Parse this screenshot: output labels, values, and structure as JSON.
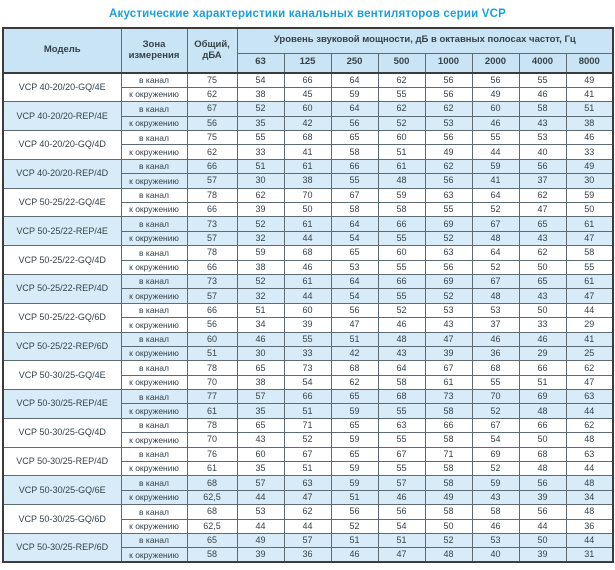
{
  "title": "Акустические характеристики канальных вентиляторов  серии VCP",
  "colors": {
    "title_blue": "#1d9fd8",
    "header_bg": "#c9e5f5",
    "row_highlight": "#d7ecf8",
    "border_dark": "#3c3c3c",
    "border_light": "#5f6b73",
    "text": "#37424a"
  },
  "table": {
    "headers": {
      "model": "Модель",
      "zone": "Зона измерения",
      "total": "Общий, дБА",
      "levels": "Уровень звуковой мощности, дБ в октавных полосах частот, Гц"
    },
    "frequencies": [
      "63",
      "125",
      "250",
      "500",
      "1000",
      "2000",
      "4000",
      "8000"
    ],
    "zone_labels": {
      "duct": "в канал",
      "ambient": "к окружению"
    },
    "rows": [
      {
        "model": "VCP 40-20/20-GQ/4E",
        "highlight": false,
        "duct": {
          "total": "75",
          "levels": [
            54,
            66,
            64,
            62,
            56,
            56,
            55,
            49
          ]
        },
        "ambient": {
          "total": "62",
          "levels": [
            38,
            45,
            59,
            55,
            56,
            49,
            46,
            41
          ]
        }
      },
      {
        "model": "VCP 40-20/20-REP/4E",
        "highlight": true,
        "duct": {
          "total": "67",
          "levels": [
            52,
            60,
            64,
            62,
            62,
            60,
            58,
            51
          ]
        },
        "ambient": {
          "total": "56",
          "levels": [
            35,
            42,
            56,
            52,
            53,
            46,
            43,
            38
          ]
        }
      },
      {
        "model": "VCP 40-20/20-GQ/4D",
        "highlight": false,
        "duct": {
          "total": "75",
          "levels": [
            55,
            68,
            65,
            60,
            56,
            55,
            53,
            46
          ]
        },
        "ambient": {
          "total": "62",
          "levels": [
            33,
            41,
            58,
            51,
            49,
            44,
            40,
            33
          ]
        }
      },
      {
        "model": "VCP 40-20/20-REP/4D",
        "highlight": true,
        "duct": {
          "total": "66",
          "levels": [
            51,
            61,
            66,
            61,
            62,
            59,
            56,
            49
          ]
        },
        "ambient": {
          "total": "57",
          "levels": [
            30,
            38,
            55,
            48,
            56,
            41,
            37,
            30
          ]
        }
      },
      {
        "model": "VCP 50-25/22-GQ/4E",
        "highlight": false,
        "duct": {
          "total": "78",
          "levels": [
            62,
            70,
            67,
            59,
            63,
            64,
            62,
            59
          ]
        },
        "ambient": {
          "total": "66",
          "levels": [
            39,
            50,
            58,
            58,
            55,
            52,
            47,
            50
          ]
        }
      },
      {
        "model": "VCP 50-25/22-REP/4E",
        "highlight": true,
        "duct": {
          "total": "73",
          "levels": [
            52,
            61,
            64,
            66,
            69,
            67,
            65,
            61
          ]
        },
        "ambient": {
          "total": "57",
          "levels": [
            32,
            44,
            54,
            55,
            52,
            48,
            43,
            47
          ]
        }
      },
      {
        "model": "VCP 50-25/22-GQ/4D",
        "highlight": false,
        "duct": {
          "total": "78",
          "levels": [
            59,
            68,
            65,
            60,
            63,
            64,
            62,
            58
          ]
        },
        "ambient": {
          "total": "66",
          "levels": [
            38,
            46,
            53,
            55,
            56,
            52,
            50,
            55
          ]
        }
      },
      {
        "model": "VCP 50-25/22-REP/4D",
        "highlight": true,
        "duct": {
          "total": "73",
          "levels": [
            52,
            61,
            64,
            66,
            69,
            67,
            65,
            61
          ]
        },
        "ambient": {
          "total": "57",
          "levels": [
            32,
            44,
            54,
            55,
            52,
            48,
            43,
            47
          ]
        }
      },
      {
        "model": "VCP 50-25/22-GQ/6D",
        "highlight": false,
        "duct": {
          "total": "66",
          "levels": [
            51,
            60,
            56,
            52,
            53,
            53,
            50,
            44
          ]
        },
        "ambient": {
          "total": "56",
          "levels": [
            34,
            39,
            47,
            46,
            43,
            37,
            33,
            29
          ]
        }
      },
      {
        "model": "VCP 50-25/22-REP/6D",
        "highlight": true,
        "duct": {
          "total": "60",
          "levels": [
            46,
            55,
            51,
            48,
            47,
            46,
            46,
            41
          ]
        },
        "ambient": {
          "total": "51",
          "levels": [
            30,
            33,
            42,
            43,
            39,
            36,
            29,
            25
          ]
        }
      },
      {
        "model": "VCP 50-30/25-GQ/4E",
        "highlight": false,
        "duct": {
          "total": "78",
          "levels": [
            65,
            73,
            68,
            64,
            67,
            68,
            66,
            62
          ]
        },
        "ambient": {
          "total": "70",
          "levels": [
            38,
            54,
            62,
            58,
            61,
            55,
            51,
            47
          ]
        }
      },
      {
        "model": "VCP 50-30/25-REP/4E",
        "highlight": true,
        "duct": {
          "total": "77",
          "levels": [
            57,
            66,
            65,
            68,
            73,
            70,
            69,
            63
          ]
        },
        "ambient": {
          "total": "61",
          "levels": [
            35,
            51,
            59,
            55,
            58,
            52,
            48,
            44
          ]
        }
      },
      {
        "model": "VCP 50-30/25-GQ/4D",
        "highlight": false,
        "duct": {
          "total": "78",
          "levels": [
            65,
            71,
            65,
            63,
            66,
            67,
            66,
            62
          ]
        },
        "ambient": {
          "total": "70",
          "levels": [
            43,
            52,
            59,
            55,
            58,
            54,
            50,
            48
          ]
        }
      },
      {
        "model": "VCP 50-30/25-REP/4D",
        "highlight": false,
        "duct": {
          "total": "76",
          "levels": [
            60,
            67,
            65,
            67,
            71,
            69,
            68,
            63
          ]
        },
        "ambient": {
          "total": "61",
          "levels": [
            35,
            51,
            59,
            55,
            58,
            52,
            48,
            44
          ]
        }
      },
      {
        "model": "VCP 50-30/25-GQ/6E",
        "highlight": true,
        "duct": {
          "total": "68",
          "levels": [
            57,
            63,
            59,
            57,
            58,
            59,
            56,
            48
          ]
        },
        "ambient": {
          "total": "62,5",
          "levels": [
            44,
            47,
            51,
            46,
            49,
            43,
            39,
            34
          ]
        }
      },
      {
        "model": "VCP 50-30/25-GQ/6D",
        "highlight": false,
        "duct": {
          "total": "68",
          "levels": [
            53,
            62,
            56,
            56,
            58,
            58,
            56,
            48
          ]
        },
        "ambient": {
          "total": "62,5",
          "levels": [
            44,
            44,
            52,
            54,
            50,
            46,
            44,
            36
          ]
        }
      },
      {
        "model": "VCP 50-30/25-REP/6D",
        "highlight": true,
        "duct": {
          "total": "65",
          "levels": [
            49,
            57,
            51,
            51,
            52,
            53,
            50,
            44
          ]
        },
        "ambient": {
          "total": "58",
          "levels": [
            39,
            36,
            46,
            47,
            48,
            40,
            39,
            31
          ]
        }
      }
    ]
  }
}
